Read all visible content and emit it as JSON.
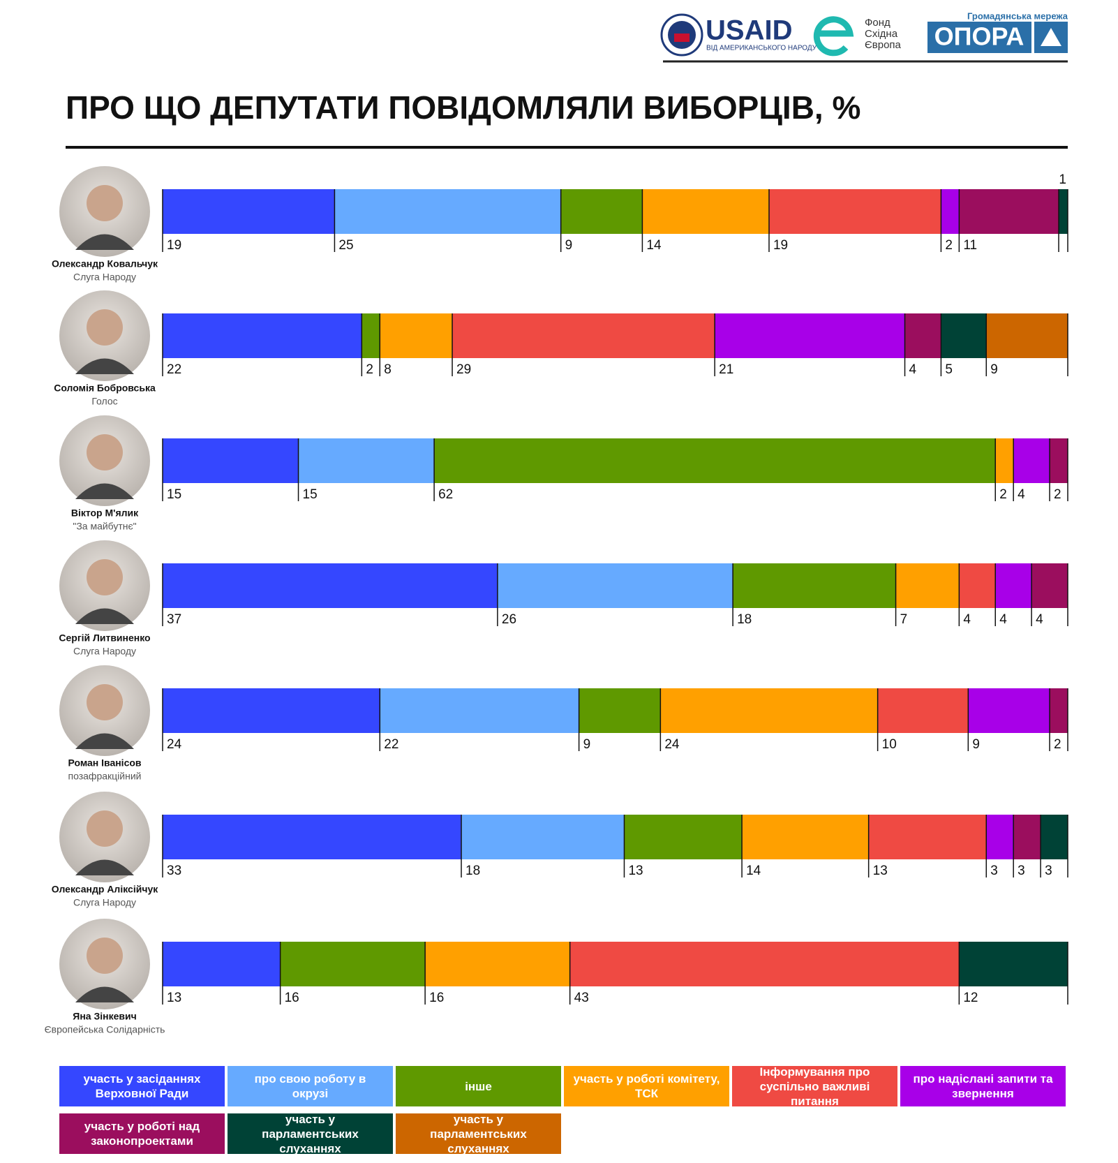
{
  "logos": {
    "usaid": "USAID",
    "usaid_tagline": "ВІД АМЕРИКАНСЬКОГО НАРОДУ",
    "fund": [
      "Фонд",
      "Східна",
      "Європа"
    ],
    "opora_network": "Громадянська мережа",
    "opora": "ОПОРА"
  },
  "chart_data": {
    "type": "stacked-bar",
    "title": "ПРО ЩО ДЕПУТАТИ ПОВІДОМЛЯЛИ ВИБОРЦІВ, %",
    "categories": [
      "Олександр Ковальчук",
      "Соломія Бобровська",
      "Віктор М'ялик",
      "Сергій Литвиненко",
      "Роман Іванісов",
      "Олександр Аліксійчук",
      "Яна Зінкевич"
    ],
    "parties": [
      "Слуга Народу",
      "Голос",
      "\"За майбутнє\"",
      "Слуга Народу",
      "позафракційний",
      "Слуга Народу",
      "Європейська Солідарність"
    ],
    "xlim": [
      0,
      100
    ],
    "series": [
      {
        "name": "участь у засіданнях Верховної Ради",
        "color": "#3547ff",
        "values": [
          19,
          22,
          15,
          37,
          24,
          33,
          13
        ]
      },
      {
        "name": "про свою роботу в окрузі",
        "color": "#66aaff",
        "values": [
          25,
          null,
          15,
          26,
          22,
          18,
          null
        ]
      },
      {
        "name": "інше",
        "color": "#5f9900",
        "values": [
          9,
          2,
          62,
          18,
          9,
          13,
          16
        ]
      },
      {
        "name": "участь у роботі комітету, ТСК",
        "color": "#ffa000",
        "values": [
          14,
          8,
          2,
          7,
          24,
          14,
          16
        ]
      },
      {
        "name": "Інформування про суспільно важливі питання",
        "color": "#ef4a43",
        "values": [
          19,
          29,
          null,
          4,
          10,
          13,
          43
        ]
      },
      {
        "name": "про надіслані запити та звернення",
        "color": "#a800e8",
        "values": [
          2,
          21,
          4,
          4,
          9,
          3,
          null
        ]
      },
      {
        "name": "участь у роботі над законопроектами",
        "color": "#9b0e5e",
        "values": [
          11,
          4,
          2,
          4,
          2,
          3,
          null
        ]
      },
      {
        "name": "участь у парламентських слуханнях",
        "color": "#004236",
        "values": [
          1,
          5,
          null,
          null,
          null,
          3,
          12
        ]
      },
      {
        "name": "участь у парламентських слуханнях",
        "color": "#cc6600",
        "values": [
          null,
          9,
          null,
          null,
          null,
          null,
          null
        ]
      }
    ]
  }
}
